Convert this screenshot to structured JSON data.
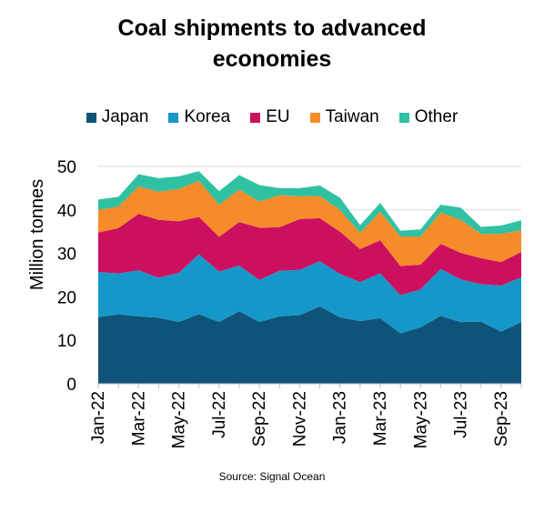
{
  "chart_data": {
    "type": "area",
    "stacked": true,
    "title_lines": [
      "Coal shipments to advanced",
      "economies"
    ],
    "ylabel": "Million tonnes",
    "xlabel": "",
    "ylim": [
      0,
      50
    ],
    "yticks": [
      0,
      10,
      20,
      30,
      40,
      50
    ],
    "grid": true,
    "legend_position": "top",
    "x": [
      "Jan-22",
      "Feb-22",
      "Mar-22",
      "Apr-22",
      "May-22",
      "Jun-22",
      "Jul-22",
      "Aug-22",
      "Sep-22",
      "Oct-22",
      "Nov-22",
      "Dec-22",
      "Jan-23",
      "Feb-23",
      "Mar-23",
      "Apr-23",
      "May-23",
      "Jun-23",
      "Jul-23",
      "Aug-23",
      "Sep-23",
      "Oct-23"
    ],
    "xtick_labels": [
      "Jan-22",
      "Mar-22",
      "May-22",
      "Jul-22",
      "Sep-22",
      "Nov-22",
      "Jan-23",
      "Mar-23",
      "May-23",
      "Jul-23",
      "Sep-23"
    ],
    "series": [
      {
        "name": "Japan",
        "color": "#0f5478",
        "values": [
          15.3,
          16.0,
          15.5,
          15.2,
          14.2,
          16.0,
          14.2,
          16.7,
          14.2,
          15.5,
          15.8,
          17.8,
          15.3,
          14.4,
          15.1,
          11.6,
          13.0,
          15.6,
          14.2,
          14.3,
          12.0,
          14.2
        ]
      },
      {
        "name": "Korea",
        "color": "#1597c9",
        "values": [
          10.4,
          9.4,
          10.6,
          9.2,
          11.3,
          13.8,
          11.6,
          10.5,
          9.7,
          10.5,
          10.4,
          10.4,
          10.0,
          9.0,
          10.3,
          8.8,
          8.7,
          10.8,
          9.8,
          8.6,
          10.6,
          10.3
        ]
      },
      {
        "name": "EU",
        "color": "#cc1060",
        "values": [
          9.1,
          10.4,
          13.0,
          13.3,
          11.9,
          8.6,
          8.0,
          10.0,
          12.0,
          10.0,
          11.7,
          9.9,
          9.7,
          7.6,
          7.6,
          6.7,
          5.7,
          5.8,
          6.1,
          6.0,
          5.4,
          5.8
        ]
      },
      {
        "name": "Taiwan",
        "color": "#f68b2a",
        "values": [
          5.2,
          5.0,
          6.3,
          6.5,
          7.4,
          8.3,
          7.4,
          7.5,
          6.0,
          7.4,
          5.2,
          5.1,
          5.0,
          3.7,
          6.6,
          6.8,
          6.5,
          7.2,
          7.6,
          5.6,
          6.5,
          5.0
        ]
      },
      {
        "name": "Other",
        "color": "#2fc1a2",
        "values": [
          2.4,
          2.2,
          2.8,
          3.1,
          2.9,
          2.2,
          3.1,
          3.3,
          3.8,
          1.6,
          1.9,
          2.4,
          2.8,
          1.8,
          2.0,
          1.3,
          1.6,
          1.8,
          2.8,
          1.6,
          1.9,
          2.3
        ]
      }
    ]
  },
  "source": "Source: Signal Ocean"
}
